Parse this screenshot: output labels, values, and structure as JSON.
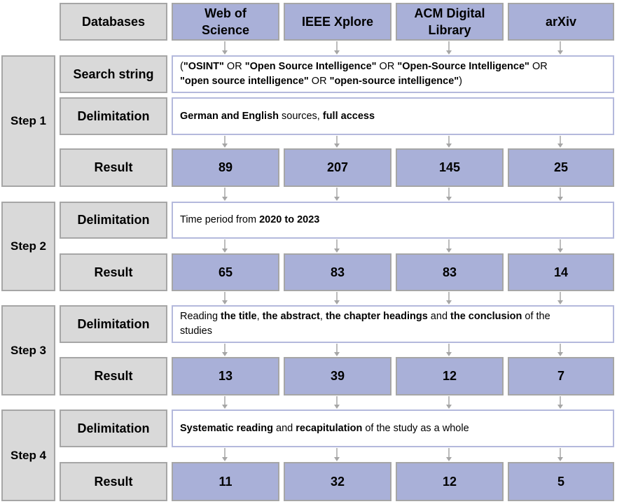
{
  "header": {
    "label": "Databases",
    "databases": [
      {
        "line1": "Web of",
        "line2": "Science"
      },
      {
        "line1": "IEEE Xplore",
        "line2": ""
      },
      {
        "line1": "ACM Digital",
        "line2": "Library"
      },
      {
        "line1": "arXiv",
        "line2": ""
      }
    ]
  },
  "labels": {
    "search_string": "Search string",
    "delimitation": "Delimitation",
    "result": "Result"
  },
  "steps": [
    {
      "name": "Step 1",
      "search_string": [
        [
          [
            "(",
            false
          ],
          [
            "\"OSINT\"",
            true
          ],
          [
            " OR ",
            false
          ],
          [
            "\"Open Source Intelligence\"",
            true
          ],
          [
            " OR ",
            false
          ],
          [
            "\"Open-Source Intelligence\"",
            true
          ],
          [
            " OR",
            false
          ]
        ],
        [
          [
            "\"open source intelligence\"",
            true
          ],
          [
            " OR ",
            false
          ],
          [
            "\"open-source intelligence\"",
            true
          ],
          [
            ")",
            false
          ]
        ]
      ],
      "delimitation": [
        [
          [
            "German and English",
            true
          ],
          [
            " sources, ",
            false
          ],
          [
            "full access",
            true
          ]
        ]
      ],
      "results": [
        "89",
        "207",
        "145",
        "25"
      ]
    },
    {
      "name": "Step 2",
      "delimitation": [
        [
          [
            "Time period from ",
            false
          ],
          [
            "2020 to 2023",
            true
          ]
        ]
      ],
      "results": [
        "65",
        "83",
        "83",
        "14"
      ]
    },
    {
      "name": "Step 3",
      "delimitation": [
        [
          [
            "Reading ",
            false
          ],
          [
            "the title",
            true
          ],
          [
            ", ",
            false
          ],
          [
            "the abstract",
            true
          ],
          [
            ", ",
            false
          ],
          [
            "the chapter headings",
            true
          ],
          [
            " and ",
            false
          ],
          [
            "the conclusion",
            true
          ],
          [
            " of the",
            false
          ]
        ],
        [
          [
            "studies",
            false
          ]
        ]
      ],
      "results": [
        "13",
        "39",
        "12",
        "7"
      ]
    },
    {
      "name": "Step 4",
      "delimitation": [
        [
          [
            "Systematic reading",
            true
          ],
          [
            " and ",
            false
          ],
          [
            "recapitulation",
            true
          ],
          [
            " of the study as a whole",
            false
          ]
        ]
      ],
      "results": [
        "11",
        "32",
        "12",
        "5"
      ]
    }
  ],
  "colors": {
    "gray_fill": "#d9d9d9",
    "blue_fill": "#a9b0d8",
    "white_border": "#b4b9dc",
    "arrow": "#a6a6a6"
  }
}
